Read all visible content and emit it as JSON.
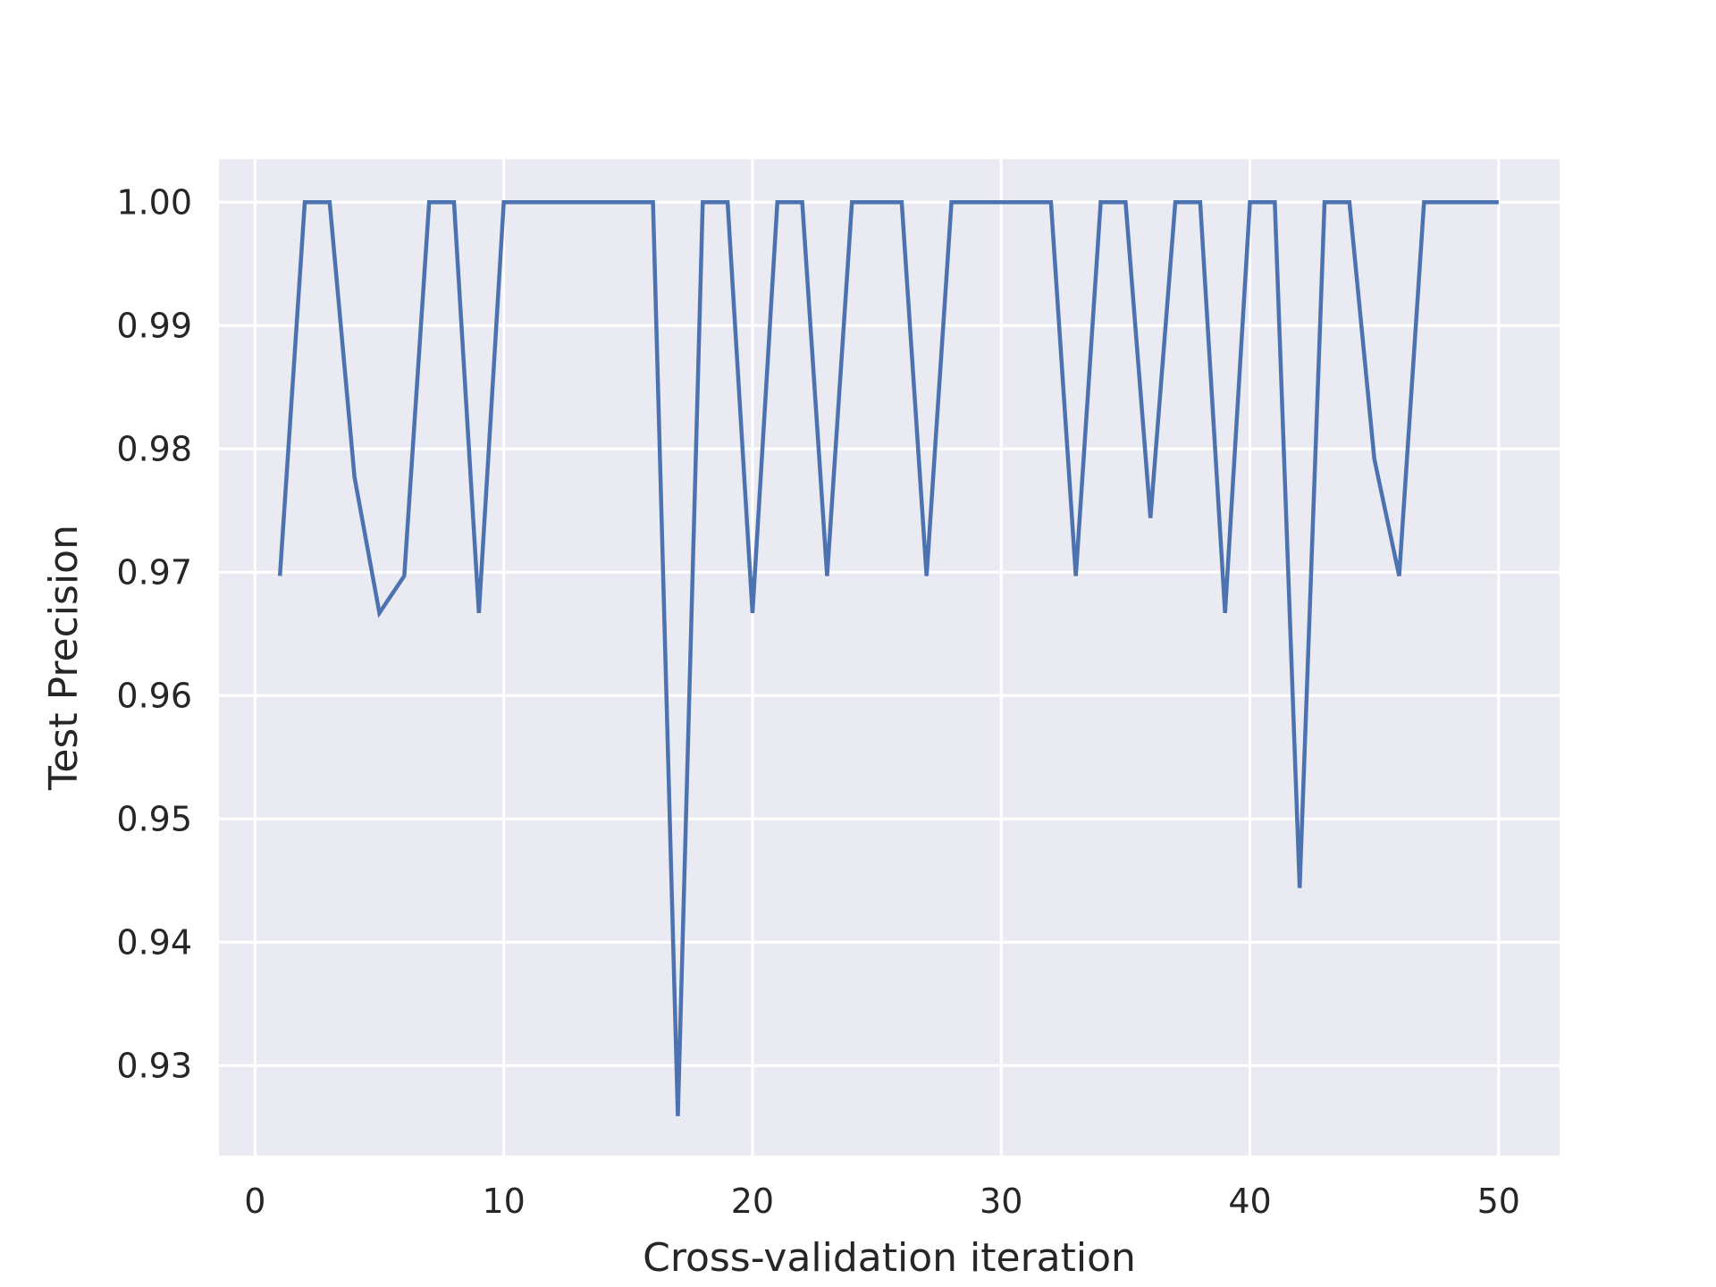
{
  "chart_data": {
    "type": "line",
    "title": "",
    "xlabel": "Cross-validation iteration",
    "ylabel": "Test Precision",
    "xlim": [
      -1.45,
      52.45
    ],
    "ylim": [
      0.9227,
      1.0035
    ],
    "x_ticks": [
      0,
      10,
      20,
      30,
      40,
      50
    ],
    "x_tick_labels": [
      "0",
      "10",
      "20",
      "30",
      "40",
      "50"
    ],
    "y_ticks": [
      0.93,
      0.94,
      0.95,
      0.96,
      0.97,
      0.98,
      0.99,
      1.0
    ],
    "y_tick_labels": [
      "0.93",
      "0.94",
      "0.95",
      "0.96",
      "0.97",
      "0.98",
      "0.99",
      "1.00"
    ],
    "grid": true,
    "background_color": "#eaeaf2",
    "grid_color": "#ffffff",
    "series": [
      {
        "color": "#4c72b0",
        "x": [
          1,
          2,
          3,
          4,
          5,
          6,
          7,
          8,
          9,
          10,
          11,
          12,
          13,
          14,
          15,
          16,
          17,
          18,
          19,
          20,
          21,
          22,
          23,
          24,
          25,
          26,
          27,
          28,
          29,
          30,
          31,
          32,
          33,
          34,
          35,
          36,
          37,
          38,
          39,
          40,
          41,
          42,
          43,
          44,
          45,
          46,
          47,
          48,
          49,
          50
        ],
        "y": [
          0.9697,
          1.0,
          1.0,
          0.9777,
          0.9667,
          0.9697,
          1.0,
          1.0,
          0.9667,
          1.0,
          1.0,
          1.0,
          1.0,
          1.0,
          1.0,
          1.0,
          0.9259,
          1.0,
          1.0,
          0.9667,
          1.0,
          1.0,
          0.9697,
          1.0,
          1.0,
          1.0,
          0.9697,
          1.0,
          1.0,
          1.0,
          1.0,
          1.0,
          0.9697,
          1.0,
          1.0,
          0.9744,
          1.0,
          1.0,
          0.9667,
          1.0,
          1.0,
          0.9444,
          1.0,
          1.0,
          0.9792,
          0.9697,
          1.0,
          1.0,
          1.0,
          1.0
        ]
      }
    ]
  }
}
